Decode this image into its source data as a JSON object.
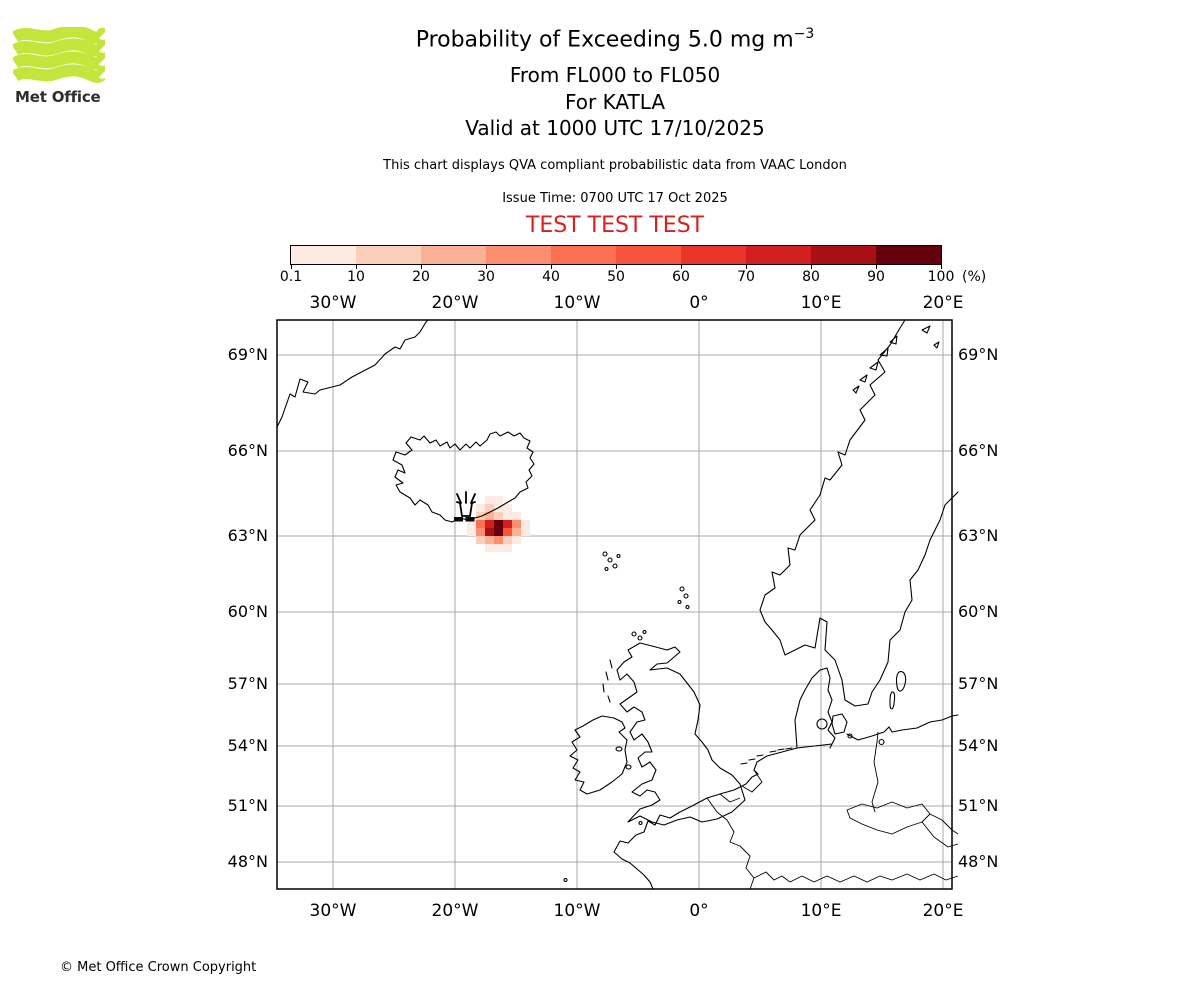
{
  "brand": {
    "name": "Met Office",
    "logo_green": "#c3e53c"
  },
  "header": {
    "title": "Probability of Exceeding 5.0 mg m",
    "title_exponent": "−3",
    "line2": "From FL000 to FL050",
    "line3": "For KATLA",
    "line4": "Valid at 1000 UTC 17/10/2025",
    "note": "This chart displays QVA compliant probabilistic data from VAAC London",
    "issue_time": "Issue Time: 0700 UTC 17 Oct 2025",
    "test_banner": "TEST TEST TEST",
    "test_color": "#d8201e"
  },
  "colorbar": {
    "tick_labels": [
      "0.1",
      "10",
      "20",
      "30",
      "40",
      "50",
      "60",
      "70",
      "80",
      "90",
      "100"
    ],
    "unit_label": "(%)",
    "segment_colors": [
      "#fdeae0",
      "#fccfba",
      "#fcb094",
      "#fc8f6f",
      "#fb7050",
      "#f6553c",
      "#e93529",
      "#d11e1f",
      "#a81016",
      "#67000d"
    ]
  },
  "map": {
    "lon_labels": [
      "30°W",
      "20°W",
      "10°W",
      "0°",
      "10°E",
      "20°E"
    ],
    "lat_labels": [
      "69°N",
      "66°N",
      "63°N",
      "60°N",
      "57°N",
      "54°N",
      "51°N",
      "48°N"
    ],
    "grid_color": "#a9a9a9",
    "coast_color": "#000000"
  },
  "footer": {
    "copyright": "© Met Office Crown Copyright"
  },
  "chart_data": {
    "type": "heatmap",
    "title": "Probability of Exceeding 5.0 mg m⁻³",
    "flight_levels": "FL000 to FL050",
    "volcano": "KATLA",
    "valid_time": "1000 UTC 17/10/2025",
    "issue_time": "0700 UTC 17 Oct 2025",
    "source": "VAAC London",
    "probability_scale_percent": [
      0.1,
      10,
      20,
      30,
      40,
      50,
      60,
      70,
      80,
      90,
      100
    ],
    "scale_unit": "%",
    "lon_ticks": [
      "30°W",
      "20°W",
      "10°W",
      "0°",
      "10°E",
      "20°E"
    ],
    "lat_ticks": [
      "69°N",
      "66°N",
      "63°N",
      "60°N",
      "57°N",
      "54°N",
      "51°N",
      "48°N"
    ],
    "plume": {
      "description": "Gridded exceedance probability cells extending SE of Katla, Iceland",
      "extent": "≈63.0–63.9°N, 19.5–14.5°W",
      "matrix_units": "colorbar bin index: 1=0.1–10% … 10=90–100%; 0 = below 0.1%",
      "matrix": [
        [
          0,
          0,
          0,
          0,
          1,
          1,
          0,
          0,
          0
        ],
        [
          0,
          0,
          0,
          1,
          2,
          1,
          1,
          0,
          0
        ],
        [
          0,
          0,
          0,
          2,
          3,
          2,
          1,
          1,
          0
        ],
        [
          0,
          0,
          1,
          5,
          8,
          10,
          8,
          4,
          1
        ],
        [
          0,
          0,
          1,
          4,
          9,
          10,
          6,
          3,
          1
        ],
        [
          0,
          0,
          0,
          2,
          3,
          4,
          2,
          1,
          0
        ],
        [
          0,
          0,
          0,
          0,
          1,
          1,
          1,
          0,
          0
        ]
      ]
    }
  }
}
